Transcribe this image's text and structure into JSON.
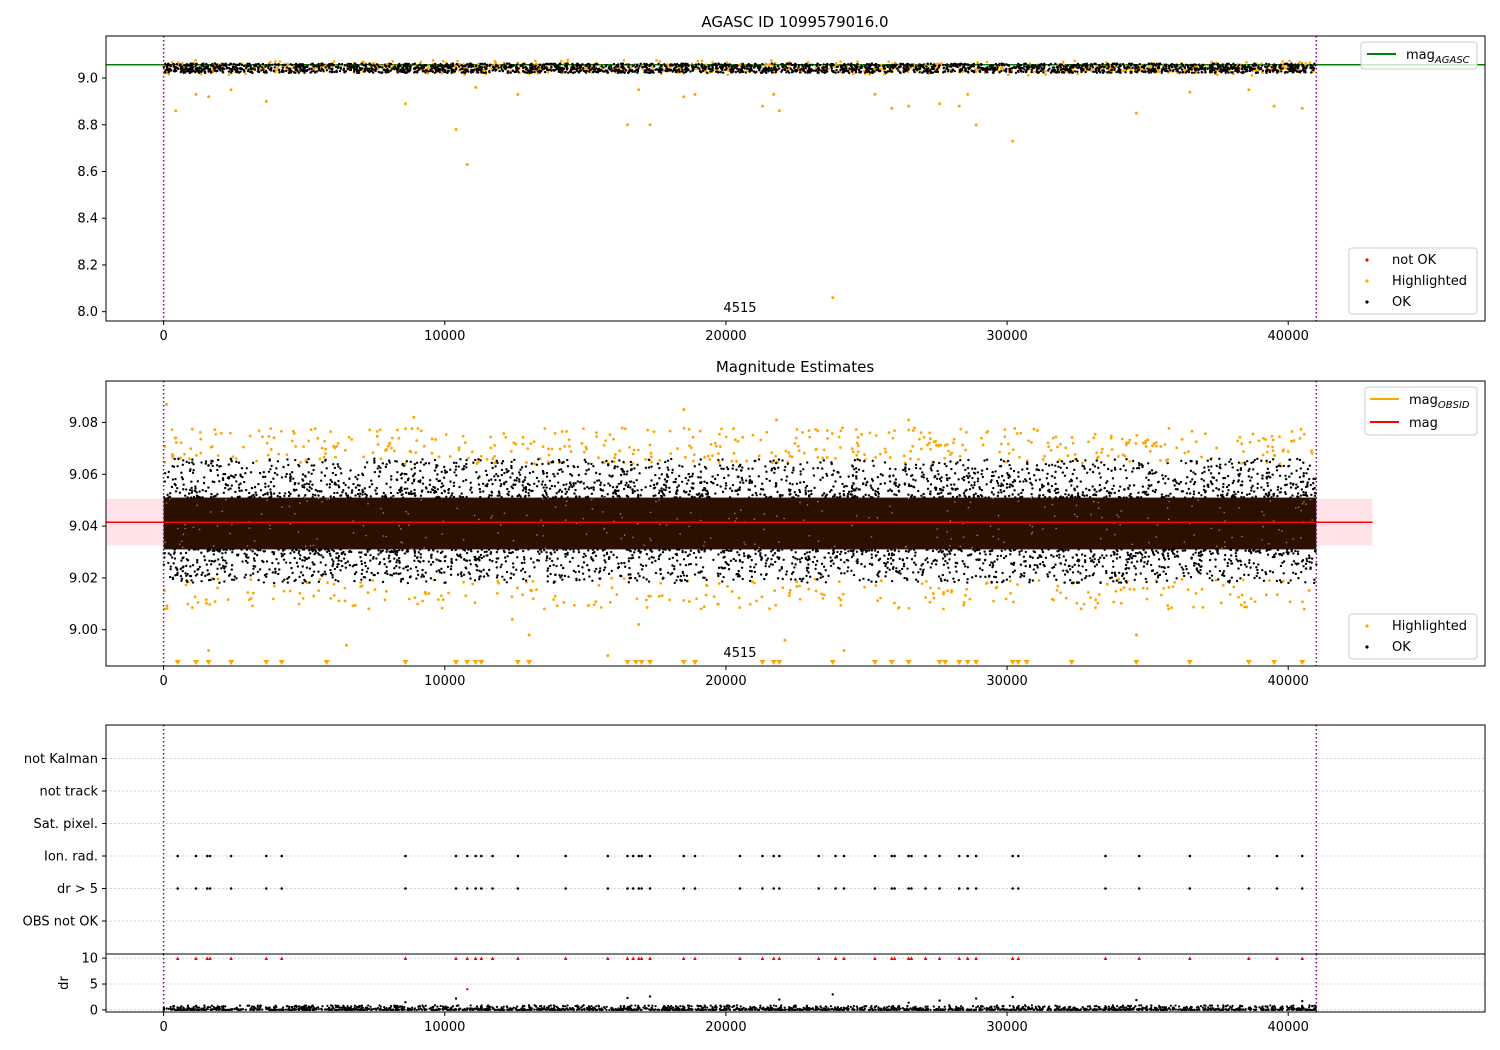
{
  "figure_background": "#ffffff",
  "colors": {
    "ok": "#000000",
    "highlighted": "#ffa500",
    "not_ok": "#ff0000",
    "mag_agasc_line": "#008000",
    "mag_line": "#ff0000",
    "mag_band": "#ffc0cb",
    "mag_obsid_line": "#ffa500",
    "obs_boundary": "#800080",
    "grid": "#b0b0b0"
  },
  "chart_data": [
    {
      "id": "agasc",
      "type": "scatter",
      "title": "AGASC ID 1099579016.0",
      "xlabel": "",
      "ylabel": "",
      "xlim": [
        -2050,
        47000
      ],
      "ylim": [
        7.96,
        9.18
      ],
      "xticks": [
        0,
        10000,
        20000,
        30000,
        40000
      ],
      "xtick_labels": [
        "0",
        "10000",
        "20000",
        "30000",
        "40000"
      ],
      "yticks": [
        8.0,
        8.2,
        8.4,
        8.6,
        8.8,
        9.0
      ],
      "ytick_labels": [
        "8.0",
        "8.2",
        "8.4",
        "8.6",
        "8.8",
        "9.0"
      ],
      "obs_boundaries": [
        0,
        41000
      ],
      "obs_label": {
        "text": "4515",
        "x": 20500
      },
      "hline": {
        "name": "mag",
        "subscript": "AGASC",
        "y": 9.057
      },
      "ok_band": [
        9.022,
        9.062
      ],
      "highlighted_band": [
        9.0,
        9.08
      ],
      "highlighted_outliers": [
        {
          "x": 430,
          "y": 8.86
        },
        {
          "x": 1150,
          "y": 8.93
        },
        {
          "x": 1600,
          "y": 8.92
        },
        {
          "x": 2400,
          "y": 8.95
        },
        {
          "x": 3650,
          "y": 8.9
        },
        {
          "x": 8600,
          "y": 8.89
        },
        {
          "x": 10400,
          "y": 8.78
        },
        {
          "x": 10800,
          "y": 8.63
        },
        {
          "x": 11100,
          "y": 8.96
        },
        {
          "x": 12600,
          "y": 8.93
        },
        {
          "x": 16500,
          "y": 8.8
        },
        {
          "x": 16900,
          "y": 8.95
        },
        {
          "x": 17300,
          "y": 8.8
        },
        {
          "x": 18500,
          "y": 8.92
        },
        {
          "x": 18900,
          "y": 8.93
        },
        {
          "x": 21300,
          "y": 8.88
        },
        {
          "x": 21700,
          "y": 8.93
        },
        {
          "x": 21900,
          "y": 8.86
        },
        {
          "x": 23800,
          "y": 8.06
        },
        {
          "x": 25300,
          "y": 8.93
        },
        {
          "x": 25900,
          "y": 8.87
        },
        {
          "x": 26500,
          "y": 8.88
        },
        {
          "x": 27600,
          "y": 8.89
        },
        {
          "x": 28300,
          "y": 8.88
        },
        {
          "x": 28600,
          "y": 8.93
        },
        {
          "x": 28900,
          "y": 8.8
        },
        {
          "x": 30200,
          "y": 8.73
        },
        {
          "x": 34600,
          "y": 8.85
        },
        {
          "x": 36500,
          "y": 8.94
        },
        {
          "x": 39500,
          "y": 8.88
        },
        {
          "x": 40500,
          "y": 8.87
        },
        {
          "x": 38600,
          "y": 8.95
        }
      ],
      "legend_lines": {
        "placement": "upper right",
        "entries": [
          {
            "label": "mag",
            "subscript": "AGASC",
            "color": "#008000"
          }
        ]
      },
      "legend_points": {
        "placement": "lower right",
        "entries": [
          {
            "label": "not OK",
            "color": "#ff0000"
          },
          {
            "label": "Highlighted",
            "color": "#ffa500"
          },
          {
            "label": "OK",
            "color": "#000000"
          }
        ]
      }
    },
    {
      "id": "estimates",
      "type": "scatter",
      "title": "Magnitude Estimates",
      "xlabel": "",
      "ylabel": "",
      "xlim": [
        -2050,
        47000
      ],
      "ylim": [
        8.986,
        9.096
      ],
      "xticks": [
        0,
        10000,
        20000,
        30000,
        40000
      ],
      "xtick_labels": [
        "0",
        "10000",
        "20000",
        "30000",
        "40000"
      ],
      "yticks": [
        9.0,
        9.02,
        9.04,
        9.06,
        9.08
      ],
      "ytick_labels": [
        "9.00",
        "9.02",
        "9.04",
        "9.06",
        "9.08"
      ],
      "obs_boundaries": [
        0,
        41000
      ],
      "obs_label": {
        "text": "4515",
        "x": 20500
      },
      "mag": 9.0415,
      "mag_band": [
        9.0325,
        9.0505
      ],
      "mag_band_xrange": [
        -2050,
        43000
      ],
      "ok_core": [
        9.031,
        9.051
      ],
      "ok_band": [
        9.018,
        9.066
      ],
      "highlighted_band": [
        9.0,
        9.08
      ],
      "highlighted_extremes": [
        {
          "x": 100,
          "y": 9.087
        },
        {
          "x": 8900,
          "y": 9.082
        },
        {
          "x": 18500,
          "y": 9.085
        },
        {
          "x": 26500,
          "y": 9.081
        },
        {
          "x": 21800,
          "y": 9.081
        },
        {
          "x": 1600,
          "y": 8.992
        },
        {
          "x": 6500,
          "y": 8.994
        },
        {
          "x": 13000,
          "y": 8.998
        },
        {
          "x": 22100,
          "y": 8.996
        },
        {
          "x": 34600,
          "y": 8.998
        },
        {
          "x": 16900,
          "y": 9.002
        },
        {
          "x": 12400,
          "y": 9.004
        },
        {
          "x": 15800,
          "y": 8.99
        },
        {
          "x": 24200,
          "y": 8.992
        }
      ],
      "below_markers_x": [
        500,
        1150,
        1600,
        2400,
        3650,
        4200,
        5800,
        8600,
        10400,
        10800,
        11100,
        11300,
        12600,
        13000,
        16500,
        16800,
        17000,
        17300,
        18500,
        18900,
        21300,
        21700,
        21900,
        23800,
        25300,
        25900,
        26500,
        27600,
        27800,
        28300,
        28600,
        28900,
        30200,
        30400,
        30700,
        32300,
        34600,
        36500,
        38600,
        39500,
        40500
      ],
      "legend_lines": {
        "placement": "upper right",
        "entries": [
          {
            "label": "mag",
            "subscript": "OBSID",
            "color": "#ffa500"
          },
          {
            "label": "mag",
            "subscript": "",
            "color": "#ff0000"
          }
        ]
      },
      "legend_points": {
        "placement": "lower right",
        "entries": [
          {
            "label": "Highlighted",
            "color": "#ffa500"
          },
          {
            "label": "OK",
            "color": "#000000"
          }
        ]
      }
    },
    {
      "id": "flags",
      "type": "scatter",
      "title": "",
      "xlabel": "",
      "ylabel": "",
      "xlim": [
        -2050,
        47000
      ],
      "categories": [
        "OBS not OK",
        "dr > 5",
        "Ion. rad.",
        "Sat. pixel.",
        "not track",
        "not Kalman"
      ],
      "obs_boundaries": [
        0,
        41000
      ],
      "flag_events_x": [
        500,
        1150,
        1550,
        1650,
        2400,
        3650,
        4200,
        8600,
        10400,
        10800,
        11100,
        11300,
        11700,
        12600,
        14300,
        15800,
        16500,
        16700,
        16900,
        17000,
        17300,
        18500,
        18900,
        20500,
        21300,
        21700,
        21900,
        23300,
        23900,
        24200,
        25300,
        25900,
        26000,
        26500,
        26600,
        27100,
        27600,
        28300,
        28600,
        28900,
        30200,
        30400,
        33500,
        34700,
        36500,
        38600,
        39600,
        40500
      ],
      "flagged_rows": [
        "dr > 5",
        "Ion. rad."
      ]
    },
    {
      "id": "dr",
      "type": "scatter",
      "title": "",
      "xlabel": "",
      "ylabel": "dr",
      "xlim": [
        -2050,
        47000
      ],
      "ylim": [
        -0.4,
        10.8
      ],
      "xticks": [
        0,
        10000,
        20000,
        30000,
        40000
      ],
      "xtick_labels": [
        "0",
        "10000",
        "20000",
        "30000",
        "40000"
      ],
      "yticks": [
        0,
        5,
        10
      ],
      "ytick_labels": [
        "0",
        "5",
        "10"
      ],
      "obs_boundaries": [
        0,
        41000
      ],
      "clip_value": 10,
      "dr_outliers": [
        {
          "x": 10400,
          "y": 2.2
        },
        {
          "x": 10800,
          "y": 4.0
        },
        {
          "x": 16500,
          "y": 2.3
        },
        {
          "x": 17300,
          "y": 2.6
        },
        {
          "x": 21900,
          "y": 2.0
        },
        {
          "x": 23800,
          "y": 3.0
        },
        {
          "x": 27600,
          "y": 1.8
        },
        {
          "x": 28900,
          "y": 2.2
        },
        {
          "x": 30200,
          "y": 2.5
        },
        {
          "x": 34600,
          "y": 1.9
        },
        {
          "x": 40500,
          "y": 1.7
        },
        {
          "x": 8600,
          "y": 1.5
        },
        {
          "x": 26500,
          "y": 1.4
        }
      ]
    }
  ]
}
